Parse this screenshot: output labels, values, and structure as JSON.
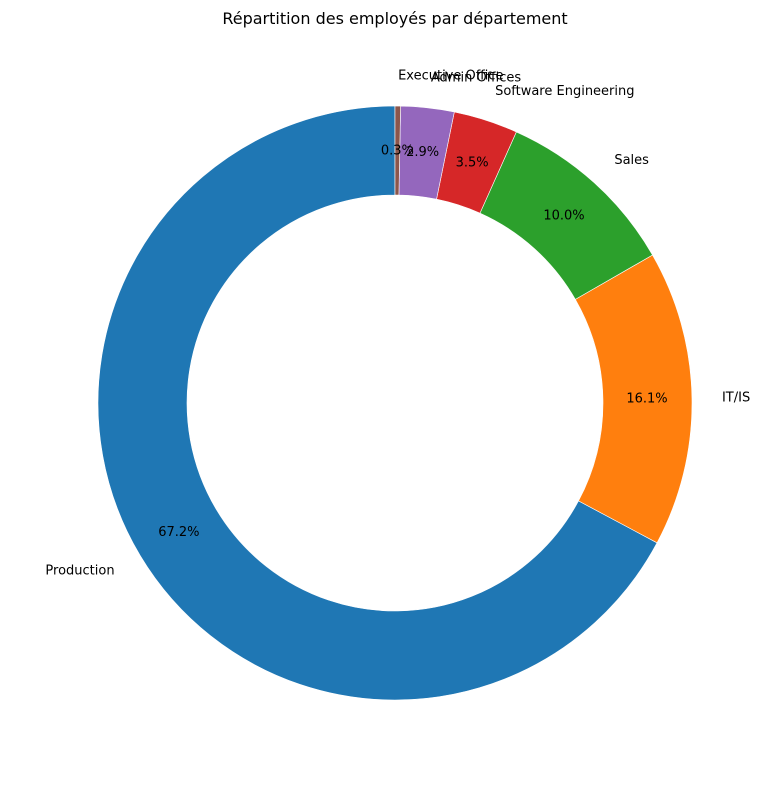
{
  "chart_data": {
    "type": "pie",
    "variant": "donut",
    "title": "Répartition des employés par département",
    "start_angle_deg": 90,
    "direction": "counterclockwise",
    "slices": [
      {
        "label": "Production",
        "value": 67.2,
        "pct_label": "67.2%",
        "color": "#1f77b4"
      },
      {
        "label": "IT/IS",
        "value": 16.1,
        "pct_label": "16.1%",
        "color": "#ff7f0e"
      },
      {
        "label": "Sales",
        "value": 10.0,
        "pct_label": "10.0%",
        "color": "#2ca02c"
      },
      {
        "label": "Software Engineering",
        "value": 3.5,
        "pct_label": "3.5%",
        "color": "#d62728"
      },
      {
        "label": "Admin Offices",
        "value": 2.9,
        "pct_label": "2.9%",
        "color": "#9467bd"
      },
      {
        "label": "Executive Office",
        "value": 0.3,
        "pct_label": "0.3%",
        "color": "#8c564b"
      }
    ]
  }
}
